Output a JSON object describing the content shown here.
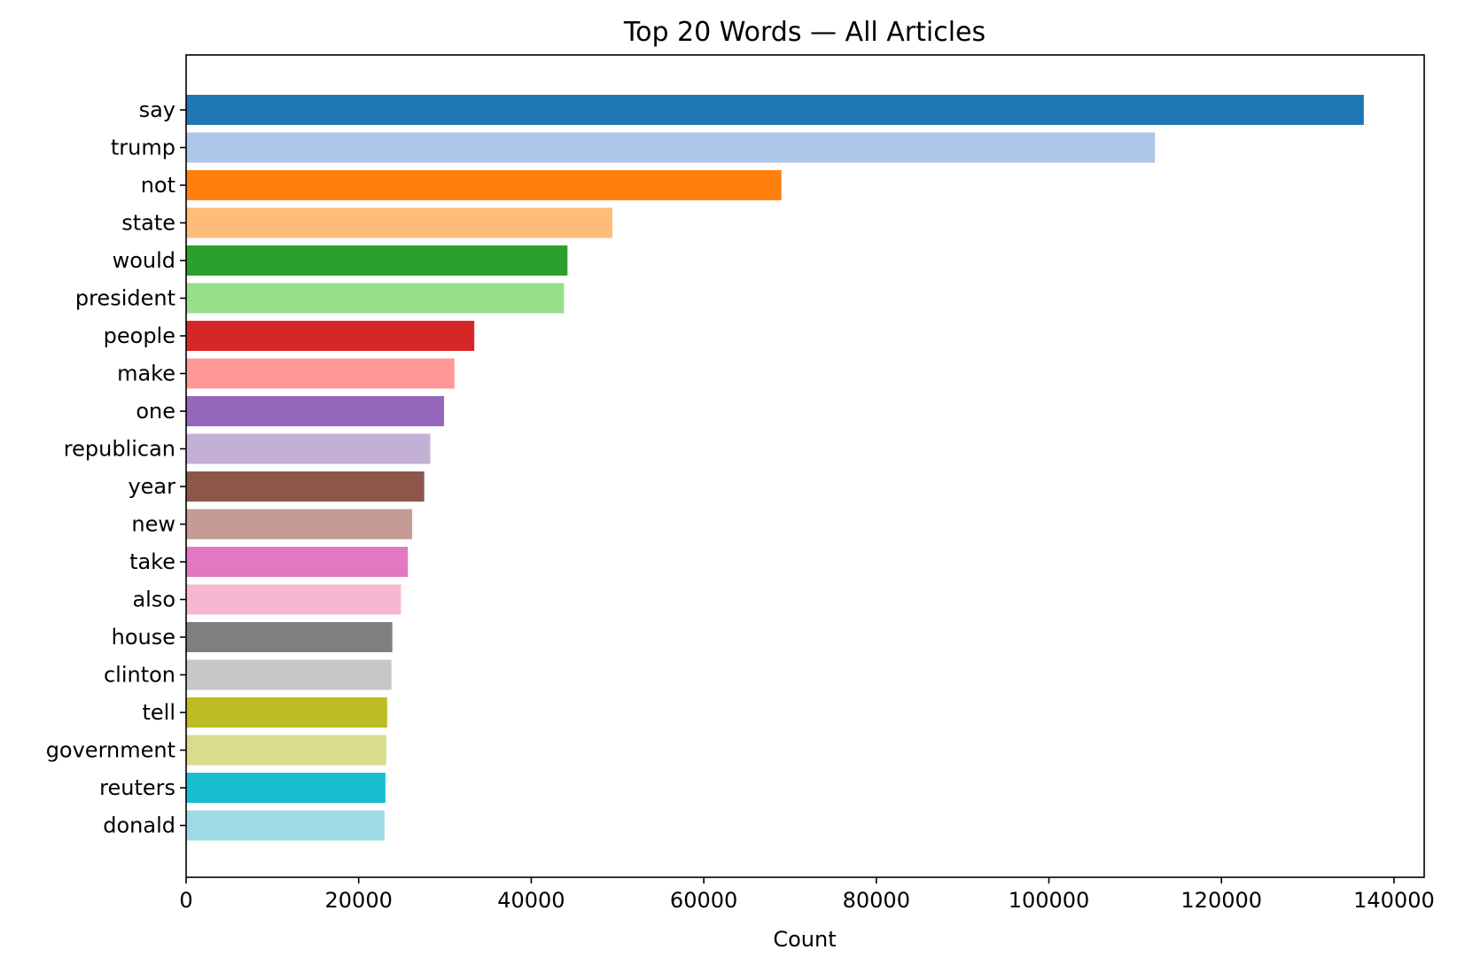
{
  "chart_data": {
    "type": "bar",
    "orientation": "horizontal",
    "title": "Top 20 Words — All Articles",
    "xlabel": "Count",
    "ylabel": "",
    "xlim": [
      0,
      143500
    ],
    "xticks": [
      0,
      20000,
      40000,
      60000,
      80000,
      100000,
      120000,
      140000
    ],
    "xtick_labels": [
      "0",
      "20000",
      "40000",
      "60000",
      "80000",
      "100000",
      "120000",
      "140000"
    ],
    "grid": false,
    "legend": "none",
    "categories": [
      "say",
      "trump",
      "not",
      "state",
      "would",
      "president",
      "people",
      "make",
      "one",
      "republican",
      "year",
      "new",
      "take",
      "also",
      "house",
      "clinton",
      "tell",
      "government",
      "reuters",
      "donald"
    ],
    "values": [
      136500,
      112300,
      69000,
      49400,
      44200,
      43800,
      33400,
      31100,
      29900,
      28300,
      27600,
      26200,
      25700,
      24900,
      23900,
      23800,
      23300,
      23200,
      23100,
      23000
    ],
    "colors": [
      "#1f77b4",
      "#aec7e8",
      "#ff7f0e",
      "#ffbb78",
      "#2ca02c",
      "#98df8a",
      "#d62728",
      "#ff9896",
      "#9467bd",
      "#c5b0d5",
      "#8c564b",
      "#c49c94",
      "#e377c2",
      "#f7b6d2",
      "#7f7f7f",
      "#c7c7c7",
      "#bcbd22",
      "#dbdb8d",
      "#17becf",
      "#9edae5"
    ]
  }
}
